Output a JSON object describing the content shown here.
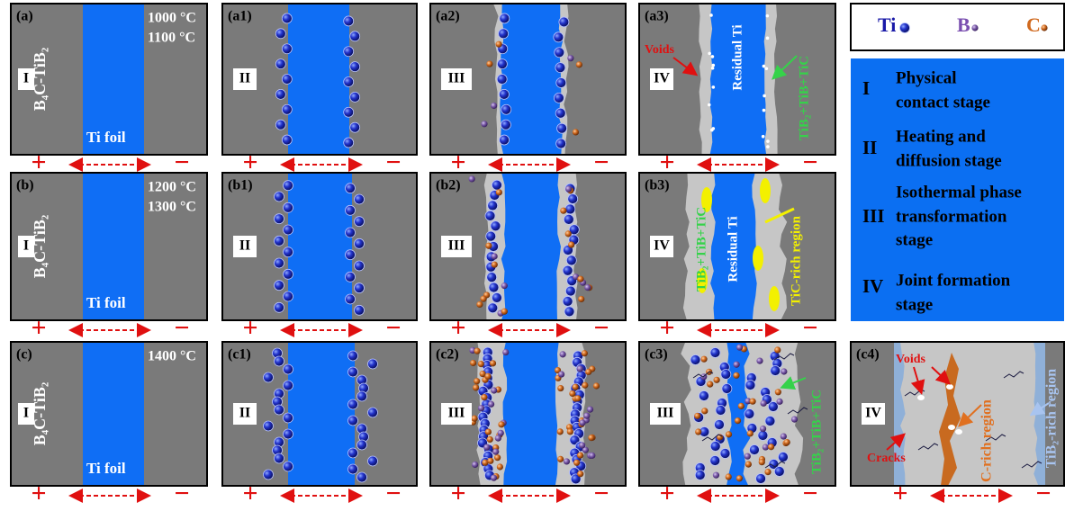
{
  "legend": {
    "items": [
      {
        "symbol": "Ti"
      },
      {
        "symbol": "B"
      },
      {
        "symbol": "C"
      }
    ]
  },
  "stages": [
    {
      "numeral": "I",
      "lines": [
        "Physical",
        "contact stage"
      ]
    },
    {
      "numeral": "II",
      "lines": [
        "Heating and",
        "diffusion stage"
      ]
    },
    {
      "numeral": "III",
      "lines": [
        "Isothermal phase",
        "transformation",
        "stage"
      ]
    },
    {
      "numeral": "IV",
      "lines": [
        "Joint formation",
        "stage"
      ]
    }
  ],
  "polarity": {
    "positive": "+",
    "negative": "−"
  },
  "panels": [
    {
      "label": "(a)",
      "stage": "I",
      "material": "B₄C-TiB₂",
      "foil": "Ti foil",
      "temps": [
        "1000 °C",
        "1100 °C"
      ]
    },
    {
      "label": "(a1)",
      "stage": "II"
    },
    {
      "label": "(a2)",
      "stage": "III"
    },
    {
      "label": "(a3)",
      "stage": "IV",
      "voids": "Voids",
      "residual": "Residual Ti",
      "product": "TiB₂+TiB+TiC"
    },
    {
      "label": "(b)",
      "stage": "I",
      "material": "B₄C-TiB₂",
      "foil": "Ti foil",
      "temps": [
        "1200 °C",
        "1300 °C"
      ]
    },
    {
      "label": "(b1)",
      "stage": "II"
    },
    {
      "label": "(b2)",
      "stage": "III"
    },
    {
      "label": "(b3)",
      "stage": "IV",
      "product": "TiB₂+TiB+TiC",
      "residual": "Residual Ti",
      "region": "TiC-rich region"
    },
    {
      "label": "(c)",
      "stage": "I",
      "material": "B₄C-TiB₂",
      "foil": "Ti foil",
      "temps": [
        "1400 °C"
      ]
    },
    {
      "label": "(c1)",
      "stage": "II"
    },
    {
      "label": "(c2)",
      "stage": "III"
    },
    {
      "label": "(c3)",
      "stage": "III",
      "product": "TiB₂+TiB+TiC"
    },
    {
      "label": "(c4)",
      "stage": "IV",
      "voids": "Voids",
      "region": "C-rich region",
      "region2": "TiB₂-rich region",
      "cracks": "Cracks"
    }
  ]
}
